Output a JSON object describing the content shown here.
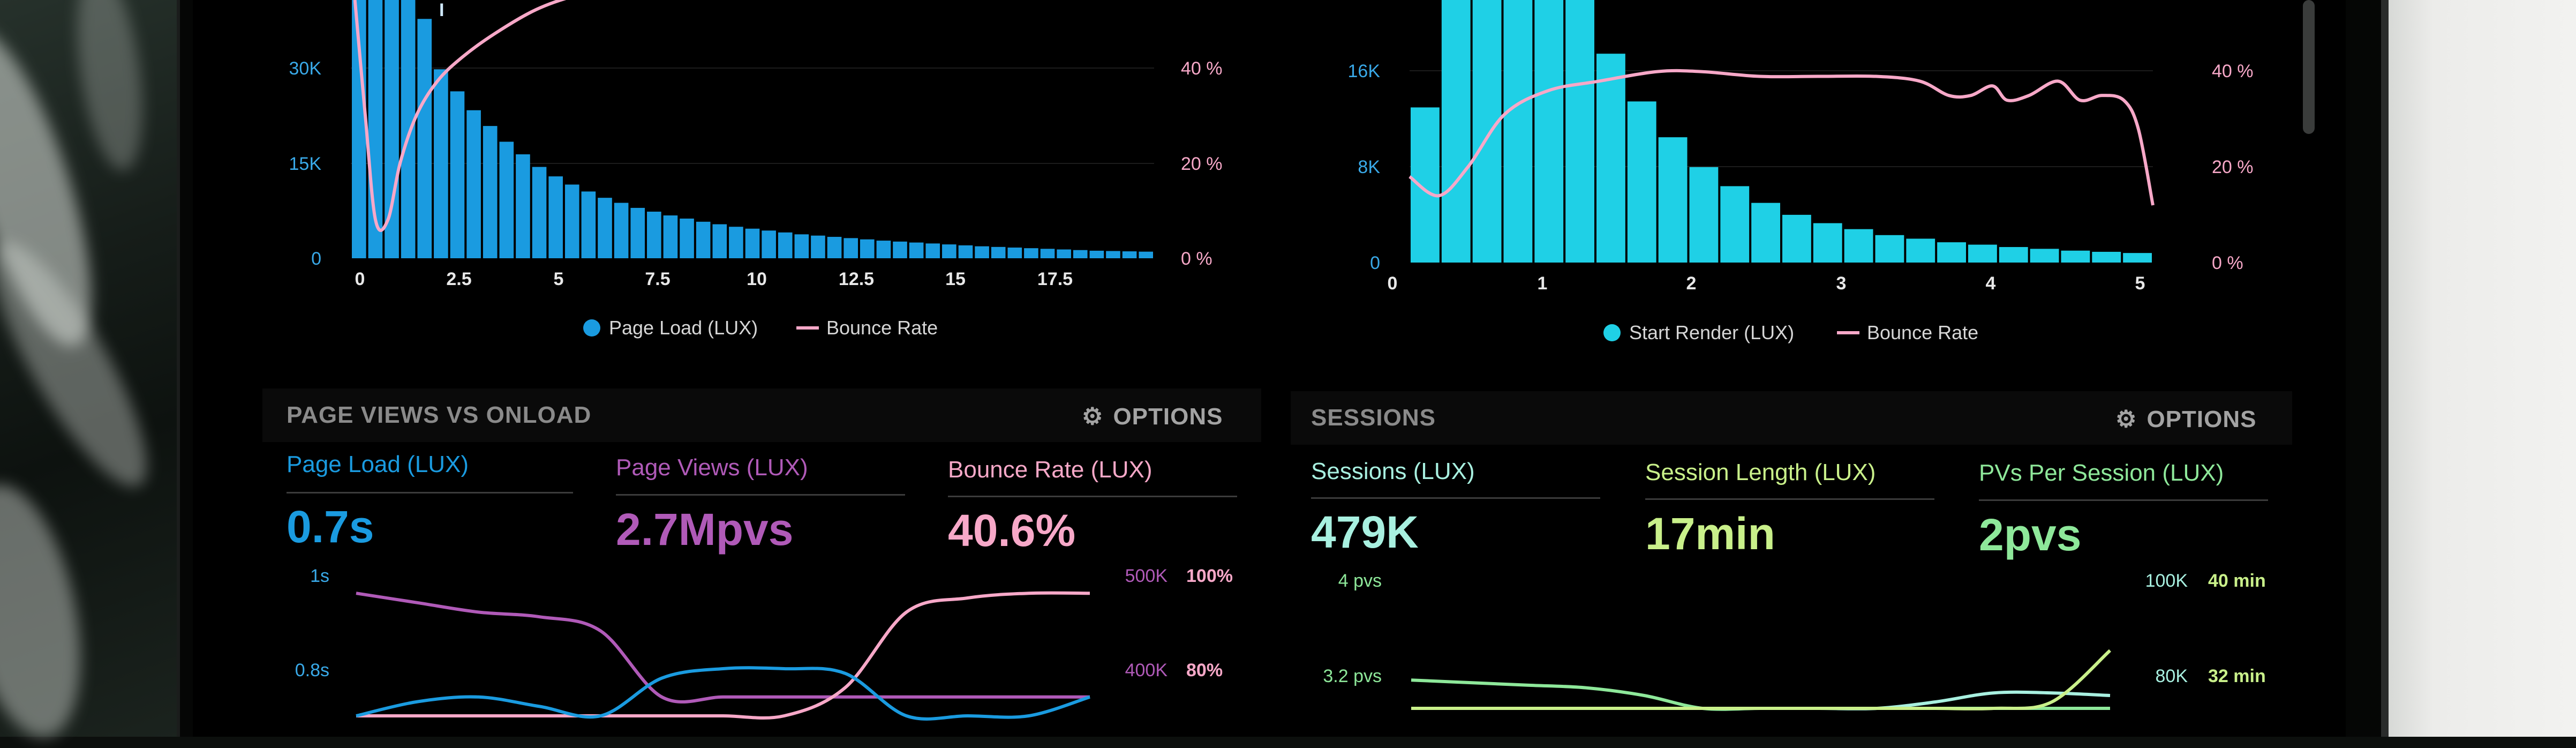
{
  "colors": {
    "page_load": "#1a9be0",
    "bounce": "#f7a8c8",
    "start_render": "#1fd0e6",
    "page_views": "#b05ab8",
    "sessions": "#a8f0e0",
    "session_length": "#c9f08a",
    "pvs": "#8ee89a",
    "axis_label": "#39a9e8"
  },
  "chart_data": [
    {
      "type": "bar",
      "legend": [
        "Page Load (LUX)",
        "Bounce Rate"
      ],
      "x_ticks": [
        "0",
        "2.5",
        "5",
        "7.5",
        "10",
        "12.5",
        "15",
        "17.5"
      ],
      "y_ticks_left": [
        "0",
        "15K",
        "30K"
      ],
      "y_ticks_right": [
        "0 %",
        "20 %",
        "40 %"
      ],
      "xlim": [
        0,
        19.5
      ],
      "ylim": [
        0,
        41000
      ],
      "bar_values": [
        41000,
        41000,
        41000,
        41000,
        38000,
        30000,
        26500,
        23500,
        21000,
        18500,
        16500,
        14500,
        13000,
        11700,
        10600,
        9600,
        8800,
        8000,
        7400,
        6800,
        6300,
        5800,
        5400,
        5000,
        4700,
        4400,
        4100,
        3800,
        3600,
        3400,
        3200,
        3000,
        2800,
        2650,
        2500,
        2350,
        2200,
        2050,
        1900,
        1800,
        1700,
        1600,
        1500,
        1400,
        1300,
        1200,
        1150,
        1100,
        1050
      ],
      "bar_marker_label": "I",
      "bounce_line": {
        "x": [
          0.1,
          0.35,
          0.6,
          0.9,
          1.2,
          1.6,
          2.1,
          2.7,
          3.5,
          4.5,
          5.5,
          6.3
        ],
        "y": [
          54,
          30,
          8,
          8,
          20,
          30,
          37,
          42,
          47,
          52,
          55,
          56
        ]
      },
      "right_ylim": [
        0,
        54
      ]
    },
    {
      "type": "bar",
      "legend": [
        "Start Render (LUX)",
        "Bounce Rate"
      ],
      "x_ticks": [
        "0",
        "1",
        "2",
        "3",
        "4",
        "5"
      ],
      "y_ticks_left": [
        "0",
        "8K",
        "16K"
      ],
      "y_ticks_right": [
        "0 %",
        "20 %",
        "40 %"
      ],
      "xlim": [
        0,
        5.1
      ],
      "ylim": [
        0,
        22000
      ],
      "bar_values": [
        13000,
        22000,
        22000,
        22000,
        22000,
        22000,
        17500,
        13500,
        10500,
        8000,
        6400,
        5000,
        4000,
        3300,
        2800,
        2300,
        2000,
        1700,
        1500,
        1300,
        1150,
        1000,
        900,
        800
      ],
      "bounce_line": {
        "x": [
          0,
          0.2,
          0.4,
          0.65,
          0.95,
          1.3,
          1.7,
          2.0,
          2.4,
          2.8,
          3.2,
          3.5,
          3.7,
          3.85,
          4.0,
          4.1,
          4.25,
          4.45,
          4.6,
          4.75,
          4.9,
          5.0,
          5.1
        ],
        "y": [
          18,
          14,
          20,
          31,
          36,
          38,
          40,
          40,
          39,
          39,
          39,
          38,
          35,
          35,
          37,
          34,
          35,
          38,
          34,
          35,
          34,
          28,
          12
        ]
      },
      "right_ylim": [
        0,
        55
      ]
    },
    {
      "type": "line",
      "y_ticks_left": [
        "1s",
        "0.8s"
      ],
      "y_ticks_right_a": [
        "500K",
        "400K"
      ],
      "y_ticks_right_b": [
        "100%",
        "80%"
      ],
      "series": [
        {
          "name": "Page Views (LUX)",
          "x": [
            0,
            1,
            2,
            3,
            4,
            5,
            6,
            7,
            8,
            9,
            10,
            11,
            12
          ],
          "y": [
            0.96,
            0.94,
            0.92,
            0.91,
            0.88,
            0.74,
            0.74,
            0.74,
            0.74,
            0.74,
            0.74,
            0.74,
            0.74
          ]
        },
        {
          "name": "Bounce Rate (LUX)",
          "x": [
            0,
            1,
            2,
            3,
            4,
            5,
            6,
            7,
            8,
            9,
            10,
            11,
            12
          ],
          "y": [
            0.7,
            0.7,
            0.7,
            0.7,
            0.7,
            0.7,
            0.7,
            0.7,
            0.76,
            0.92,
            0.95,
            0.96,
            0.96
          ]
        },
        {
          "name": "Page Load (LUX)",
          "x": [
            0,
            1,
            2,
            3,
            4,
            5,
            6,
            7,
            8,
            9,
            10,
            11,
            12
          ],
          "y": [
            0.7,
            0.73,
            0.74,
            0.72,
            0.7,
            0.78,
            0.8,
            0.8,
            0.79,
            0.7,
            0.7,
            0.7,
            0.74
          ]
        }
      ]
    },
    {
      "type": "line",
      "y_ticks_left": [
        "4 pvs",
        "3.2 pvs"
      ],
      "y_ticks_right_a": [
        "100K",
        "80K"
      ],
      "y_ticks_right_b": [
        "40 min",
        "32 min"
      ],
      "series": [
        {
          "name": "PVs Per Session (LUX)",
          "x": [
            0,
            1,
            2,
            3,
            4,
            5,
            6,
            7,
            8,
            9,
            10,
            11,
            12
          ],
          "y": [
            3.22,
            3.2,
            3.18,
            3.16,
            3.1,
            3.0,
            3.0,
            3.0,
            3.0,
            3.0,
            3.0,
            3.0,
            3.0
          ]
        },
        {
          "name": "Sessions (LUX)",
          "x": [
            0,
            1,
            2,
            3,
            4,
            5,
            6,
            7,
            8,
            9,
            10,
            11,
            12
          ],
          "y": [
            3.0,
            3.0,
            3.0,
            3.0,
            3.0,
            3.0,
            3.0,
            3.0,
            3.0,
            3.05,
            3.12,
            3.12,
            3.1
          ]
        },
        {
          "name": "Session Length (LUX)",
          "x": [
            0,
            1,
            2,
            3,
            4,
            5,
            6,
            7,
            8,
            9,
            10,
            11,
            12
          ],
          "y": [
            3.0,
            3.0,
            3.0,
            3.0,
            3.0,
            3.0,
            3.0,
            3.0,
            3.0,
            3.0,
            3.0,
            3.05,
            3.45
          ]
        }
      ]
    }
  ],
  "panels": {
    "left": {
      "title": "PAGE VIEWS VS ONLOAD",
      "options": "OPTIONS",
      "metrics": [
        {
          "label": "Page Load (LUX)",
          "value": "0.7s"
        },
        {
          "label": "Page Views (LUX)",
          "value": "2.7Mpvs"
        },
        {
          "label": "Bounce Rate (LUX)",
          "value": "40.6%"
        }
      ]
    },
    "right": {
      "title": "SESSIONS",
      "options": "OPTIONS",
      "metrics": [
        {
          "label": "Sessions (LUX)",
          "value": "479K"
        },
        {
          "label": "Session Length (LUX)",
          "value": "17min"
        },
        {
          "label": "PVs Per Session (LUX)",
          "value": "2pvs"
        }
      ]
    }
  }
}
